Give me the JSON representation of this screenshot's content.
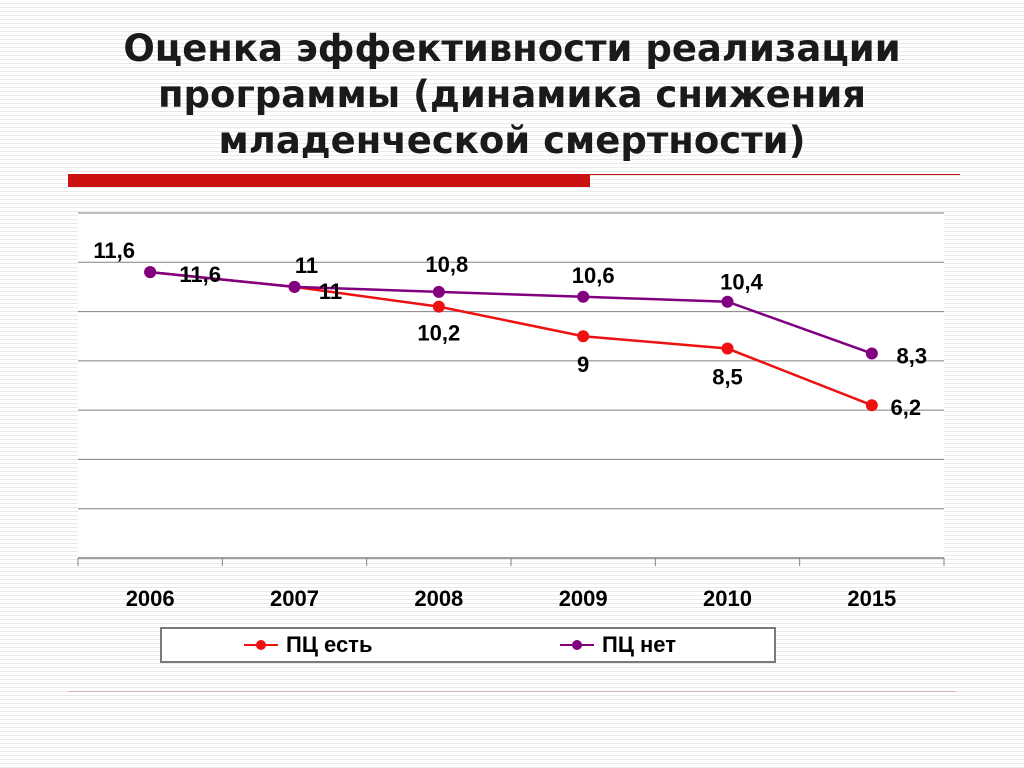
{
  "slide": {
    "title_lines": [
      "Оценка эффективности реализации",
      "программы (динамика снижения",
      "младенческой смертности)"
    ]
  },
  "chart_data": {
    "type": "line",
    "categories": [
      "2006",
      "2007",
      "2008",
      "2009",
      "2010",
      "2015"
    ],
    "series": [
      {
        "name": "ПЦ есть",
        "color": "#ee1111",
        "values": [
          11.6,
          11,
          10.2,
          9,
          8.5,
          6.2
        ],
        "labels": [
          "11,6",
          "11",
          "10,2",
          "9",
          "8,5",
          "6,2"
        ]
      },
      {
        "name": "ПЦ нет",
        "color": "#800080",
        "values": [
          11.6,
          11,
          10.8,
          10.6,
          10.4,
          8.3
        ],
        "labels": [
          "11,6",
          "11",
          "10,8",
          "10,6",
          "10,4",
          "8,3"
        ]
      }
    ],
    "ylim": [
      0,
      14
    ],
    "grid": true,
    "legend": "bottom"
  }
}
